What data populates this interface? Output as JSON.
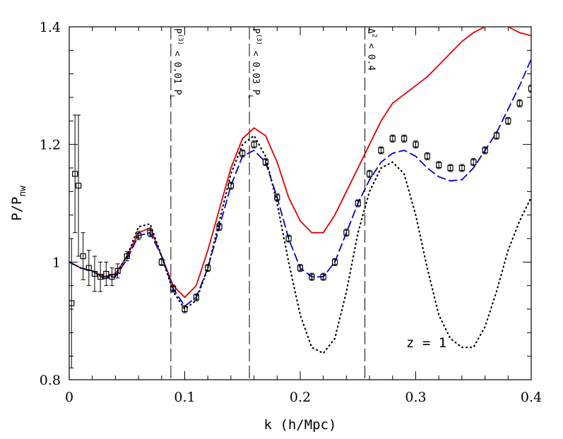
{
  "chart_data": {
    "type": "line",
    "xlabel": "k  (h/Mpc)",
    "ylabel": [
      {
        "text": "P/P"
      },
      {
        "text": "nw",
        "pos": "sub"
      }
    ],
    "annotation": "z  =  1",
    "xlim": [
      0,
      0.4
    ],
    "ylim": [
      0.8,
      1.4
    ],
    "xticks": [
      0,
      0.1,
      0.2,
      0.3,
      0.4
    ],
    "yticks": [
      0.8,
      1,
      1.2,
      1.4
    ],
    "x": [
      0,
      0.01,
      0.02,
      0.03,
      0.04,
      0.05,
      0.06,
      0.07,
      0.08,
      0.09,
      0.1,
      0.11,
      0.12,
      0.13,
      0.14,
      0.15,
      0.16,
      0.17,
      0.18,
      0.19,
      0.2,
      0.21,
      0.22,
      0.23,
      0.24,
      0.25,
      0.26,
      0.27,
      0.28,
      0.29,
      0.3,
      0.31,
      0.32,
      0.33,
      0.34,
      0.35,
      0.36,
      0.37,
      0.38,
      0.39,
      0.4
    ],
    "series": [
      {
        "color": "#e00000",
        "style": "solid",
        "values": [
          1.0,
          0.99,
          0.985,
          0.975,
          0.98,
          1.01,
          1.05,
          1.058,
          1.01,
          0.96,
          0.94,
          0.96,
          1.02,
          1.09,
          1.16,
          1.21,
          1.228,
          1.215,
          1.17,
          1.11,
          1.07,
          1.05,
          1.05,
          1.08,
          1.12,
          1.16,
          1.2,
          1.24,
          1.27,
          1.285,
          1.3,
          1.315,
          1.335,
          1.355,
          1.375,
          1.39,
          1.4,
          1.405,
          1.4,
          1.39,
          1.385
        ]
      },
      {
        "color": "#0000d0",
        "style": "dashed",
        "values": [
          1.0,
          0.99,
          0.985,
          0.972,
          0.975,
          1.005,
          1.045,
          1.05,
          1.01,
          0.955,
          0.925,
          0.94,
          0.99,
          1.06,
          1.13,
          1.18,
          1.19,
          1.17,
          1.11,
          1.04,
          0.99,
          0.975,
          0.975,
          1.0,
          1.05,
          1.1,
          1.14,
          1.17,
          1.185,
          1.19,
          1.18,
          1.16,
          1.145,
          1.138,
          1.14,
          1.16,
          1.19,
          1.22,
          1.26,
          1.3,
          1.345
        ]
      },
      {
        "color": "#000000",
        "style": "dotted",
        "values": [
          1.0,
          0.99,
          0.985,
          0.972,
          0.978,
          1.01,
          1.06,
          1.065,
          1.01,
          0.95,
          0.92,
          0.935,
          0.99,
          1.07,
          1.15,
          1.2,
          1.215,
          1.18,
          1.1,
          1.0,
          0.91,
          0.855,
          0.845,
          0.87,
          0.95,
          1.05,
          1.12,
          1.16,
          1.17,
          1.15,
          1.08,
          0.99,
          0.91,
          0.87,
          0.855,
          0.855,
          0.89,
          0.95,
          1.02,
          1.07,
          1.11
        ]
      }
    ],
    "points": {
      "color": "#000000",
      "x": [
        0.002,
        0.005,
        0.008,
        0.012,
        0.017,
        0.022,
        0.027,
        0.032,
        0.037,
        0.042,
        0.05,
        0.06,
        0.07,
        0.08,
        0.09,
        0.1,
        0.11,
        0.12,
        0.13,
        0.14,
        0.15,
        0.16,
        0.17,
        0.18,
        0.19,
        0.2,
        0.21,
        0.22,
        0.23,
        0.24,
        0.25,
        0.26,
        0.27,
        0.28,
        0.29,
        0.3,
        0.31,
        0.32,
        0.33,
        0.34,
        0.35,
        0.36,
        0.37,
        0.38,
        0.39,
        0.4
      ],
      "values": [
        0.93,
        1.15,
        1.13,
        1.01,
        0.99,
        0.98,
        0.975,
        0.98,
        0.975,
        0.985,
        1.01,
        1.045,
        1.05,
        1.0,
        0.955,
        0.92,
        0.94,
        0.99,
        1.06,
        1.13,
        1.185,
        1.2,
        1.17,
        1.11,
        1.04,
        0.99,
        0.975,
        0.975,
        1.0,
        1.05,
        1.1,
        1.15,
        1.19,
        1.21,
        1.21,
        1.2,
        1.18,
        1.165,
        1.16,
        1.16,
        1.17,
        1.19,
        1.215,
        1.24,
        1.27,
        1.295
      ],
      "errors": [
        0.11,
        0.1,
        0.12,
        0.04,
        0.03,
        0.03,
        0.025,
        0.02,
        0.015,
        0.012,
        0.008,
        0.007,
        0.007,
        0.006,
        0.006,
        0.006,
        0.006,
        0.006,
        0.006,
        0.006,
        0.006,
        0.006,
        0.006,
        0.006,
        0.006,
        0.006,
        0.006,
        0.006,
        0.006,
        0.006,
        0.006,
        0.006,
        0.006,
        0.006,
        0.006,
        0.006,
        0.006,
        0.006,
        0.006,
        0.006,
        0.006,
        0.006,
        0.006,
        0.006,
        0.006,
        0.006
      ]
    },
    "vlines": [
      {
        "x": 0.088,
        "label": [
          {
            "text": "P"
          },
          {
            "text": "(3)",
            "pos": "sup"
          },
          {
            "text": " < 0.01 P"
          },
          {
            "text": "L",
            "pos": "sub"
          }
        ]
      },
      {
        "x": 0.156,
        "label": [
          {
            "text": "P"
          },
          {
            "text": "(3)",
            "pos": "sup"
          },
          {
            "text": " < 0.03 P"
          },
          {
            "text": "L",
            "pos": "sub"
          }
        ]
      },
      {
        "x": 0.256,
        "label": [
          {
            "text": "Δ"
          },
          {
            "text": "2",
            "pos": "sup"
          },
          {
            "text": " < 0.4"
          }
        ]
      }
    ]
  }
}
